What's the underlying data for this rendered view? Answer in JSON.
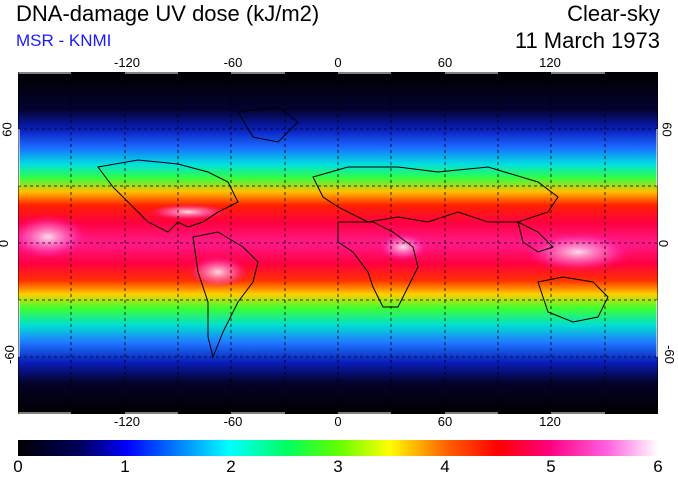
{
  "header": {
    "title": "DNA-damage UV dose (kJ/m2)",
    "subtitle": "MSR - KNMI",
    "sky_condition": "Clear-sky",
    "date": "11 March 1973"
  },
  "map": {
    "longitude_ticks": [
      "-120",
      "-60",
      "0",
      "60",
      "120"
    ],
    "latitude_ticks": [
      "60",
      "0",
      "-60"
    ],
    "grid": "dashed",
    "projection": "equirectangular"
  },
  "colorbar": {
    "labels": [
      "0",
      "1",
      "2",
      "3",
      "4",
      "5",
      "6"
    ],
    "min": 0,
    "max": 6,
    "colors": [
      "#000000",
      "#0000ff",
      "#00ffff",
      "#00ff00",
      "#ffff00",
      "#ff0000",
      "#ff00aa",
      "#ffffff"
    ]
  }
}
